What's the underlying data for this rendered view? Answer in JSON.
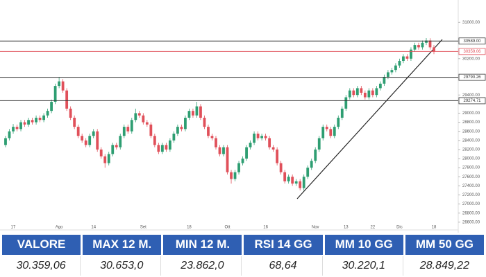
{
  "chart_data": {
    "type": "candlestick",
    "categories": [
      null,
      null,
      "17",
      null,
      null,
      null,
      null,
      null,
      null,
      null,
      null,
      null,
      null,
      null,
      "Ago",
      null,
      null,
      null,
      null,
      null,
      null,
      null,
      null,
      "14",
      null,
      null,
      null,
      null,
      null,
      null,
      null,
      null,
      null,
      null,
      null,
      null,
      "Set",
      null,
      null,
      null,
      null,
      null,
      null,
      null,
      null,
      null,
      null,
      null,
      "18",
      null,
      null,
      null,
      null,
      null,
      null,
      null,
      null,
      null,
      "Ott",
      null,
      null,
      null,
      null,
      null,
      null,
      null,
      null,
      null,
      "16",
      null,
      null,
      null,
      null,
      null,
      null,
      null,
      null,
      null,
      null,
      null,
      null,
      "Nov",
      null,
      null,
      null,
      null,
      null,
      null,
      null,
      "13",
      null,
      null,
      null,
      null,
      null,
      null,
      "22",
      null,
      null,
      null,
      null,
      null,
      null,
      "Dic",
      null,
      null,
      null,
      null,
      null,
      null,
      null,
      null,
      "18"
    ],
    "ohlc": [
      [
        28300,
        28500,
        28250,
        28450
      ],
      [
        28450,
        28650,
        28400,
        28600
      ],
      [
        28600,
        28760,
        28550,
        28700
      ],
      [
        28700,
        28750,
        28600,
        28650
      ],
      [
        28650,
        28850,
        28600,
        28800
      ],
      [
        28800,
        28850,
        28700,
        28750
      ],
      [
        28750,
        28900,
        28700,
        28850
      ],
      [
        28850,
        28900,
        28750,
        28800
      ],
      [
        28800,
        28950,
        28750,
        28900
      ],
      [
        28900,
        28950,
        28800,
        28850
      ],
      [
        28850,
        29000,
        28800,
        28950
      ],
      [
        28950,
        29100,
        28900,
        29050
      ],
      [
        29050,
        29300,
        29000,
        29250
      ],
      [
        29250,
        29650,
        29200,
        29600
      ],
      [
        29600,
        29800,
        29550,
        29700
      ],
      [
        29700,
        29750,
        29450,
        29500
      ],
      [
        29500,
        29550,
        29050,
        29100
      ],
      [
        29100,
        29150,
        28850,
        28900
      ],
      [
        28900,
        28950,
        28650,
        28700
      ],
      [
        28700,
        28750,
        28450,
        28500
      ],
      [
        28500,
        28550,
        28350,
        28400
      ],
      [
        28400,
        28450,
        28250,
        28300
      ],
      [
        28300,
        28550,
        28250,
        28500
      ],
      [
        28500,
        28650,
        28450,
        28600
      ],
      [
        28600,
        28650,
        28150,
        28200
      ],
      [
        28200,
        28250,
        28000,
        28050
      ],
      [
        28050,
        28100,
        27800,
        27900
      ],
      [
        27900,
        28150,
        27850,
        28100
      ],
      [
        28100,
        28350,
        28050,
        28300
      ],
      [
        28300,
        28350,
        28200,
        28250
      ],
      [
        28250,
        28550,
        28200,
        28500
      ],
      [
        28500,
        28750,
        28450,
        28700
      ],
      [
        28700,
        28750,
        28550,
        28600
      ],
      [
        28600,
        28900,
        28550,
        28850
      ],
      [
        28850,
        29100,
        28800,
        29000
      ],
      [
        29000,
        29050,
        28900,
        28950
      ],
      [
        28950,
        29000,
        28750,
        28800
      ],
      [
        28800,
        28850,
        28700,
        28750
      ],
      [
        28750,
        28800,
        28450,
        28500
      ],
      [
        28500,
        28550,
        28250,
        28300
      ],
      [
        28300,
        28350,
        28100,
        28150
      ],
      [
        28150,
        28350,
        28100,
        28300
      ],
      [
        28300,
        28350,
        28150,
        28200
      ],
      [
        28200,
        28450,
        28150,
        28400
      ],
      [
        28400,
        28600,
        28350,
        28550
      ],
      [
        28550,
        28750,
        28500,
        28700
      ],
      [
        28700,
        28750,
        28600,
        28650
      ],
      [
        28650,
        28950,
        28600,
        28900
      ],
      [
        28900,
        29100,
        28850,
        29050
      ],
      [
        29050,
        29100,
        28900,
        28950
      ],
      [
        28950,
        29250,
        28900,
        29150
      ],
      [
        29150,
        29200,
        28850,
        28900
      ],
      [
        28900,
        28950,
        28650,
        28700
      ],
      [
        28700,
        28750,
        28450,
        28500
      ],
      [
        28500,
        28550,
        28400,
        28450
      ],
      [
        28450,
        28500,
        28200,
        28250
      ],
      [
        28250,
        28300,
        28050,
        28100
      ],
      [
        28100,
        28300,
        28050,
        28250
      ],
      [
        28250,
        28300,
        27650,
        27700
      ],
      [
        27700,
        27750,
        27450,
        27550
      ],
      [
        27550,
        27750,
        27500,
        27700
      ],
      [
        27700,
        27950,
        27650,
        27900
      ],
      [
        27900,
        28050,
        27850,
        28000
      ],
      [
        28000,
        28300,
        27950,
        28250
      ],
      [
        28250,
        28400,
        28200,
        28350
      ],
      [
        28350,
        28600,
        28300,
        28550
      ],
      [
        28550,
        28600,
        28400,
        28450
      ],
      [
        28450,
        28550,
        28400,
        28500
      ],
      [
        28500,
        28550,
        28400,
        28450
      ],
      [
        28450,
        28500,
        28200,
        28250
      ],
      [
        28250,
        28300,
        28150,
        28200
      ],
      [
        28200,
        28250,
        27850,
        27900
      ],
      [
        27900,
        27950,
        27650,
        27700
      ],
      [
        27700,
        27750,
        27450,
        27500
      ],
      [
        27500,
        27650,
        27450,
        27600
      ],
      [
        27600,
        27650,
        27400,
        27450
      ],
      [
        27450,
        27550,
        27400,
        27500
      ],
      [
        27500,
        27550,
        27300,
        27350
      ],
      [
        27350,
        27650,
        27300,
        27600
      ],
      [
        27600,
        27850,
        27550,
        27800
      ],
      [
        27800,
        28000,
        27750,
        27950
      ],
      [
        27950,
        28250,
        27900,
        28200
      ],
      [
        28200,
        28500,
        28150,
        28450
      ],
      [
        28450,
        28750,
        28400,
        28700
      ],
      [
        28700,
        28750,
        28600,
        28650
      ],
      [
        28650,
        28700,
        28450,
        28500
      ],
      [
        28500,
        28750,
        28450,
        28700
      ],
      [
        28700,
        28950,
        28650,
        28900
      ],
      [
        28900,
        29150,
        28850,
        29100
      ],
      [
        29100,
        29400,
        29050,
        29350
      ],
      [
        29350,
        29550,
        29300,
        29500
      ],
      [
        29500,
        29550,
        29350,
        29400
      ],
      [
        29400,
        29600,
        29350,
        29550
      ],
      [
        29550,
        29600,
        29400,
        29450
      ],
      [
        29450,
        29500,
        29300,
        29350
      ],
      [
        29350,
        29550,
        29300,
        29500
      ],
      [
        29500,
        29550,
        29350,
        29400
      ],
      [
        29400,
        29600,
        29350,
        29550
      ],
      [
        29550,
        29700,
        29500,
        29650
      ],
      [
        29650,
        29850,
        29600,
        29800
      ],
      [
        29800,
        29950,
        29750,
        29900
      ],
      [
        29900,
        30000,
        29850,
        29950
      ],
      [
        29950,
        30100,
        29900,
        30050
      ],
      [
        30050,
        30200,
        30000,
        30150
      ],
      [
        30150,
        30300,
        30100,
        30250
      ],
      [
        30250,
        30300,
        30150,
        30200
      ],
      [
        30200,
        30450,
        30150,
        30400
      ],
      [
        30400,
        30550,
        30350,
        30500
      ],
      [
        30500,
        30550,
        30400,
        30450
      ],
      [
        30450,
        30600,
        30400,
        30550
      ],
      [
        30550,
        30653,
        30500,
        30600
      ],
      [
        30600,
        30650,
        30400,
        30450
      ],
      [
        30450,
        30500,
        30300,
        30359.06
      ]
    ],
    "up_color": "#2e9e72",
    "down_color": "#e0505a",
    "ylim": [
      26460,
      31340
    ],
    "yticks": [
      {
        "value": 31000,
        "label": "31000.00"
      },
      {
        "value": 30200,
        "label": "30200.00"
      },
      {
        "value": 29400,
        "label": "29400.00"
      },
      {
        "value": 29000,
        "label": "29000.00"
      },
      {
        "value": 28800,
        "label": "28800.00"
      },
      {
        "value": 28600,
        "label": "28600.00"
      },
      {
        "value": 28400,
        "label": "28400.00"
      },
      {
        "value": 28200,
        "label": "28200.00"
      },
      {
        "value": 28000,
        "label": "28000.00"
      },
      {
        "value": 27800,
        "label": "27800.00"
      },
      {
        "value": 27600,
        "label": "27600.00"
      },
      {
        "value": 27400,
        "label": "27400.00"
      },
      {
        "value": 27200,
        "label": "27200.00"
      },
      {
        "value": 27000,
        "label": "27000.00"
      },
      {
        "value": 26800,
        "label": "26800.00"
      },
      {
        "value": 26600,
        "label": "26600.00"
      }
    ],
    "levels": [
      {
        "value": 30589,
        "label": "30589.00",
        "color": "#333333"
      },
      {
        "value": 30359.06,
        "label": "30359.06",
        "color": "#e0505a"
      },
      {
        "value": 29790.26,
        "label": "29790.26",
        "color": "#333333"
      },
      {
        "value": 29274.71,
        "label": "29274.71",
        "color": "#333333"
      }
    ]
  },
  "table": {
    "headers": [
      "VALORE",
      "MAX 12 M.",
      "MIN 12 M.",
      "RSI 14 GG",
      "MM 10 GG",
      "MM 50 GG"
    ],
    "values": [
      "30.359,06",
      "30.653,0",
      "23.862,0",
      "68,64",
      "30.220,1",
      "28.849,22"
    ]
  }
}
